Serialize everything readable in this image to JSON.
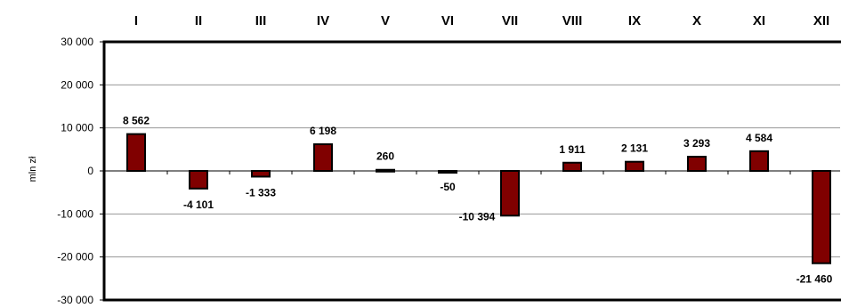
{
  "chart_data": {
    "type": "bar",
    "categories": [
      "I",
      "II",
      "III",
      "IV",
      "V",
      "VI",
      "VII",
      "VIII",
      "IX",
      "X",
      "XI",
      "XII"
    ],
    "values": [
      8562,
      -4101,
      -1333,
      6198,
      260,
      -50,
      -10394,
      1911,
      2131,
      3293,
      4584,
      -21460
    ],
    "data_labels": [
      "8 562",
      "-4 101",
      "-1 333",
      "6 198",
      "260",
      "-50",
      "-10 394",
      "1 911",
      "2 131",
      "3 293",
      "4 584",
      "-21 460"
    ],
    "ylabel": "mln zł",
    "ylim": [
      -30000,
      30000
    ],
    "yticks": [
      30000,
      20000,
      10000,
      0,
      -10000,
      -20000,
      -30000
    ],
    "ytick_labels": [
      "30 000",
      "20 000",
      "10 000",
      "0",
      "-10 000",
      "-20 000",
      "-30 000"
    ],
    "category_axis_position": "top",
    "grid": true,
    "colors": {
      "bar_fill": "#800000",
      "bar_stroke": "#000000",
      "grid": "#888888"
    }
  }
}
